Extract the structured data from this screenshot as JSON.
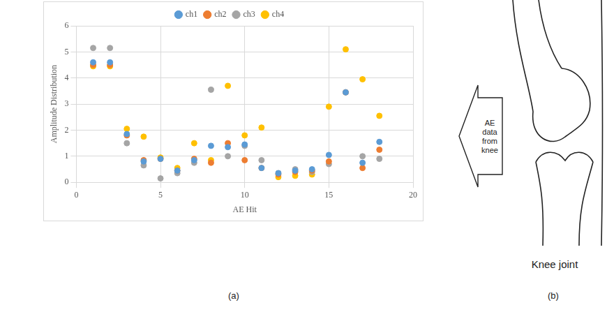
{
  "chart_data": {
    "type": "scatter",
    "x_label": "AE Hit",
    "y_label": "Amplitude Distribution",
    "x": [
      1,
      2,
      3,
      4,
      5,
      6,
      7,
      8,
      9,
      10,
      11,
      12,
      13,
      14,
      15,
      16,
      17,
      18
    ],
    "series": [
      {
        "name": "ch1",
        "color": "#5b9bd5",
        "marker": "circle",
        "values": [
          4.6,
          4.6,
          1.85,
          0.8,
          0.9,
          0.45,
          0.85,
          1.4,
          1.35,
          1.45,
          0.55,
          0.35,
          0.45,
          0.5,
          1.05,
          3.45,
          0.75,
          1.55
        ]
      },
      {
        "name": "ch2",
        "color": "#ed7d31",
        "marker": "circle",
        "values": [
          4.5,
          4.5,
          1.8,
          0.85,
          0.9,
          0.45,
          0.9,
          0.75,
          1.5,
          0.85,
          0.55,
          0.3,
          0.4,
          0.45,
          0.8,
          3.45,
          0.55,
          1.25
        ]
      },
      {
        "name": "ch3",
        "color": "#a5a5a5",
        "marker": "circle",
        "values": [
          5.15,
          5.15,
          1.5,
          0.65,
          0.15,
          0.35,
          0.75,
          3.55,
          1.0,
          1.4,
          0.85,
          0.35,
          0.5,
          0.4,
          0.7,
          3.45,
          1.0,
          0.9
        ]
      },
      {
        "name": "ch4",
        "color": "#ffc000",
        "marker": "circle",
        "values": [
          4.45,
          4.45,
          2.05,
          1.75,
          0.95,
          0.55,
          1.5,
          0.85,
          3.7,
          1.8,
          2.1,
          0.2,
          0.25,
          0.3,
          2.9,
          5.1,
          3.95,
          2.55
        ]
      }
    ],
    "xlim": [
      0,
      20
    ],
    "xticks": [
      0,
      5,
      10,
      15,
      20
    ],
    "ylim": [
      0,
      6
    ],
    "yticks": [
      0,
      1,
      2,
      3,
      4,
      5,
      6
    ],
    "grid": true,
    "legend": "top"
  },
  "panel_labels": [
    "(a)",
    "(b)"
  ],
  "diagram": {
    "arrow_label": "AE data from knee",
    "caption": "Knee joint"
  }
}
